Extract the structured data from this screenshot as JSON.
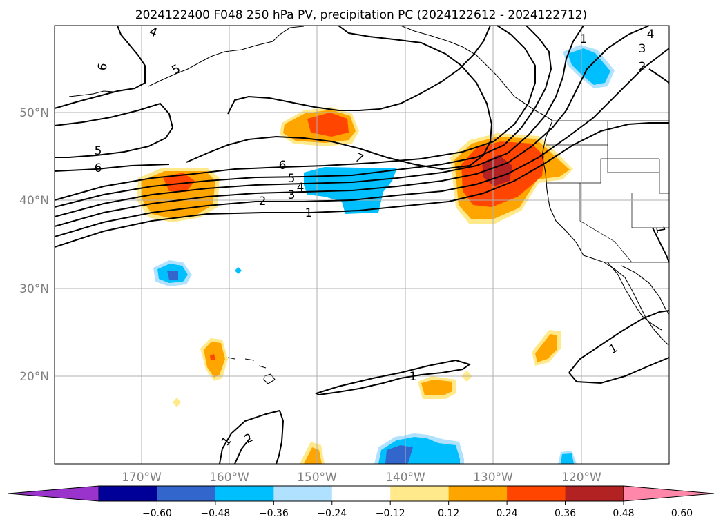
{
  "title": "2024122400 F048 250 hPa PV, precipitation PC (2024122612 - 2024122712)",
  "map": {
    "lat_labels": [
      "50°N",
      "40°N",
      "30°N",
      "20°N"
    ],
    "lon_labels": [
      "170°W",
      "160°W",
      "150°W",
      "140°W",
      "130°W",
      "120°W"
    ],
    "contour_labels": [
      "6",
      "5",
      "6",
      "5",
      "4",
      "7",
      "6",
      "5",
      "4",
      "3",
      "2",
      "1",
      "1",
      "2",
      "3",
      "4",
      "1",
      "1",
      "1",
      "2",
      "1"
    ]
  },
  "colorbar": {
    "tick_labels": [
      "−0.60",
      "−0.48",
      "−0.36",
      "−0.24",
      "−0.12",
      "0.12",
      "0.24",
      "0.36",
      "0.48",
      "0.60"
    ],
    "colors": [
      "#9933cc",
      "#000099",
      "#3366cc",
      "#00bfff",
      "#b0e2ff",
      "#ffffff",
      "#ffe98a",
      "#ffa500",
      "#ff4500",
      "#b22222",
      "#ff88aa"
    ]
  },
  "colors": {
    "map_frame": "#000000",
    "gridline": "#b0b0b0",
    "contour": "#000000"
  }
}
